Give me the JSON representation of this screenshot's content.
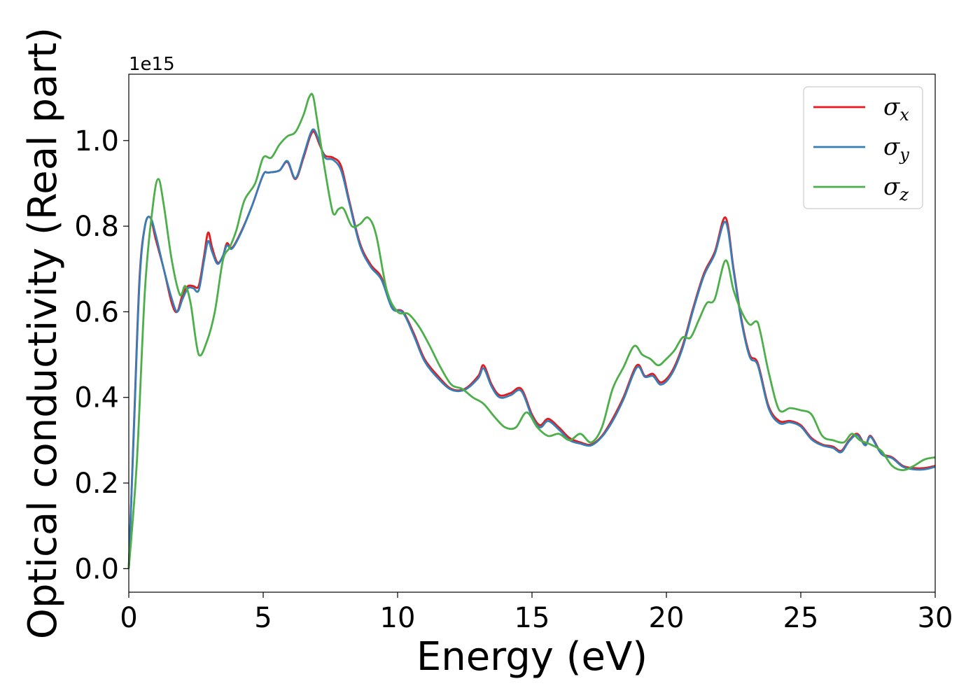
{
  "chart_data": {
    "type": "line",
    "xlabel": "Energy (eV)",
    "ylabel": "Optical conductivity (Real part)",
    "y_offset_label": "1e15",
    "xlim": [
      0,
      30
    ],
    "ylim": [
      -0.055,
      1.155
    ],
    "xticks": [
      0,
      5,
      10,
      15,
      20,
      25,
      30
    ],
    "xtick_labels": [
      "0",
      "5",
      "10",
      "15",
      "20",
      "25",
      "30"
    ],
    "yticks": [
      0.0,
      0.2,
      0.4,
      0.6,
      0.8,
      1.0
    ],
    "ytick_labels": [
      "0.0",
      "0.2",
      "0.4",
      "0.6",
      "0.8",
      "1.0"
    ],
    "grid": false,
    "legend_position": "top-right",
    "series": [
      {
        "name": "σx",
        "label_main": "σ",
        "label_sub": "x",
        "color": "#e41a1c",
        "x": [
          0,
          0.2,
          0.4,
          0.6,
          0.8,
          1.0,
          1.3,
          1.6,
          1.8,
          2.0,
          2.2,
          2.4,
          2.6,
          2.8,
          2.95,
          3.1,
          3.3,
          3.5,
          3.65,
          3.85,
          4.2,
          4.6,
          5.0,
          5.2,
          5.6,
          5.9,
          6.2,
          6.5,
          6.75,
          6.9,
          7.1,
          7.3,
          7.6,
          7.9,
          8.2,
          8.6,
          9.0,
          9.4,
          9.8,
          10.2,
          10.6,
          11.0,
          11.5,
          12.0,
          12.5,
          13.0,
          13.2,
          13.5,
          13.8,
          14.2,
          14.6,
          15.0,
          15.3,
          15.6,
          16.0,
          16.4,
          16.8,
          17.2,
          17.6,
          18.0,
          18.4,
          18.9,
          19.2,
          19.5,
          19.8,
          20.2,
          20.6,
          21.0,
          21.4,
          21.8,
          22.2,
          22.5,
          22.8,
          23.1,
          23.4,
          23.8,
          24.2,
          24.6,
          25.0,
          25.4,
          25.8,
          26.2,
          26.5,
          26.8,
          27.1,
          27.4,
          27.6,
          28.0,
          28.4,
          28.8,
          29.2,
          29.6,
          30.0
        ],
        "y": [
          0.0,
          0.35,
          0.68,
          0.8,
          0.82,
          0.77,
          0.7,
          0.62,
          0.6,
          0.64,
          0.66,
          0.66,
          0.66,
          0.73,
          0.785,
          0.75,
          0.715,
          0.73,
          0.76,
          0.75,
          0.79,
          0.85,
          0.92,
          0.925,
          0.93,
          0.95,
          0.91,
          0.96,
          1.01,
          1.02,
          0.99,
          0.965,
          0.96,
          0.94,
          0.86,
          0.76,
          0.71,
          0.68,
          0.61,
          0.6,
          0.55,
          0.49,
          0.45,
          0.42,
          0.42,
          0.45,
          0.475,
          0.43,
          0.405,
          0.41,
          0.42,
          0.36,
          0.335,
          0.35,
          0.33,
          0.305,
          0.295,
          0.29,
          0.31,
          0.35,
          0.4,
          0.475,
          0.45,
          0.455,
          0.435,
          0.46,
          0.52,
          0.61,
          0.69,
          0.74,
          0.82,
          0.7,
          0.58,
          0.5,
          0.48,
          0.38,
          0.345,
          0.345,
          0.335,
          0.305,
          0.29,
          0.285,
          0.275,
          0.3,
          0.315,
          0.29,
          0.31,
          0.27,
          0.26,
          0.24,
          0.235,
          0.235,
          0.24
        ]
      },
      {
        "name": "σy",
        "label_main": "σ",
        "label_sub": "y",
        "color": "#377eb8",
        "x": [
          0,
          0.2,
          0.4,
          0.6,
          0.8,
          1.0,
          1.3,
          1.6,
          1.8,
          2.0,
          2.2,
          2.4,
          2.6,
          2.8,
          2.95,
          3.1,
          3.3,
          3.5,
          3.65,
          3.85,
          4.2,
          4.6,
          5.0,
          5.2,
          5.6,
          5.9,
          6.2,
          6.5,
          6.75,
          6.9,
          7.1,
          7.3,
          7.6,
          7.9,
          8.2,
          8.6,
          9.0,
          9.4,
          9.8,
          10.2,
          10.6,
          11.0,
          11.5,
          12.0,
          12.5,
          13.0,
          13.2,
          13.5,
          13.8,
          14.2,
          14.6,
          15.0,
          15.3,
          15.6,
          16.0,
          16.4,
          16.8,
          17.2,
          17.6,
          18.0,
          18.4,
          18.9,
          19.2,
          19.5,
          19.8,
          20.2,
          20.6,
          21.0,
          21.4,
          21.8,
          22.2,
          22.5,
          22.8,
          23.1,
          23.4,
          23.8,
          24.2,
          24.6,
          25.0,
          25.4,
          25.8,
          26.2,
          26.5,
          26.8,
          27.1,
          27.4,
          27.6,
          28.0,
          28.4,
          28.8,
          29.2,
          29.6,
          30.0
        ],
        "y": [
          0.0,
          0.34,
          0.67,
          0.8,
          0.82,
          0.78,
          0.7,
          0.63,
          0.6,
          0.63,
          0.655,
          0.655,
          0.65,
          0.72,
          0.765,
          0.74,
          0.712,
          0.73,
          0.755,
          0.748,
          0.788,
          0.85,
          0.92,
          0.925,
          0.93,
          0.952,
          0.912,
          0.965,
          1.015,
          1.025,
          0.995,
          0.96,
          0.955,
          0.93,
          0.855,
          0.755,
          0.705,
          0.675,
          0.608,
          0.598,
          0.545,
          0.485,
          0.445,
          0.418,
          0.418,
          0.445,
          0.468,
          0.425,
          0.4,
          0.405,
          0.415,
          0.355,
          0.33,
          0.345,
          0.325,
          0.3,
          0.292,
          0.288,
          0.308,
          0.345,
          0.395,
          0.47,
          0.448,
          0.45,
          0.43,
          0.455,
          0.515,
          0.605,
          0.685,
          0.735,
          0.81,
          0.695,
          0.575,
          0.495,
          0.475,
          0.375,
          0.34,
          0.342,
          0.332,
          0.302,
          0.288,
          0.282,
          0.272,
          0.298,
          0.312,
          0.288,
          0.308,
          0.268,
          0.258,
          0.238,
          0.232,
          0.232,
          0.238
        ]
      },
      {
        "name": "σz",
        "label_main": "σ",
        "label_sub": "z",
        "color": "#4daf4a",
        "x": [
          0,
          0.3,
          0.6,
          0.9,
          1.1,
          1.3,
          1.6,
          1.9,
          2.1,
          2.3,
          2.6,
          2.9,
          3.2,
          3.5,
          3.75,
          4.0,
          4.3,
          4.7,
          5.0,
          5.3,
          5.6,
          5.9,
          6.2,
          6.5,
          6.7,
          6.85,
          7.0,
          7.3,
          7.6,
          7.8,
          8.0,
          8.3,
          8.6,
          8.9,
          9.2,
          9.6,
          10.0,
          10.4,
          10.8,
          11.2,
          11.6,
          12.0,
          12.4,
          12.8,
          13.2,
          13.6,
          14.0,
          14.4,
          14.8,
          15.2,
          15.6,
          16.0,
          16.4,
          16.8,
          17.2,
          17.6,
          18.0,
          18.4,
          18.8,
          19.1,
          19.4,
          19.7,
          20.0,
          20.3,
          20.6,
          20.9,
          21.2,
          21.5,
          21.8,
          22.2,
          22.5,
          22.8,
          23.1,
          23.4,
          23.8,
          24.2,
          24.6,
          25.0,
          25.4,
          25.8,
          26.2,
          26.6,
          26.9,
          27.2,
          27.6,
          28.0,
          28.4,
          28.8,
          29.2,
          29.6,
          30.0
        ],
        "y": [
          0.0,
          0.25,
          0.65,
          0.85,
          0.91,
          0.85,
          0.72,
          0.64,
          0.66,
          0.62,
          0.5,
          0.53,
          0.6,
          0.72,
          0.75,
          0.79,
          0.86,
          0.9,
          0.96,
          0.96,
          0.99,
          1.01,
          1.02,
          1.06,
          1.1,
          1.105,
          1.05,
          0.93,
          0.83,
          0.84,
          0.84,
          0.8,
          0.805,
          0.82,
          0.78,
          0.65,
          0.6,
          0.595,
          0.565,
          0.52,
          0.47,
          0.43,
          0.42,
          0.4,
          0.385,
          0.355,
          0.33,
          0.33,
          0.365,
          0.33,
          0.31,
          0.315,
          0.3,
          0.315,
          0.295,
          0.33,
          0.42,
          0.47,
          0.52,
          0.5,
          0.49,
          0.475,
          0.49,
          0.51,
          0.54,
          0.54,
          0.58,
          0.62,
          0.63,
          0.72,
          0.65,
          0.6,
          0.57,
          0.575,
          0.46,
          0.37,
          0.375,
          0.37,
          0.36,
          0.31,
          0.3,
          0.295,
          0.315,
          0.3,
          0.29,
          0.275,
          0.24,
          0.23,
          0.24,
          0.255,
          0.26
        ]
      }
    ]
  }
}
